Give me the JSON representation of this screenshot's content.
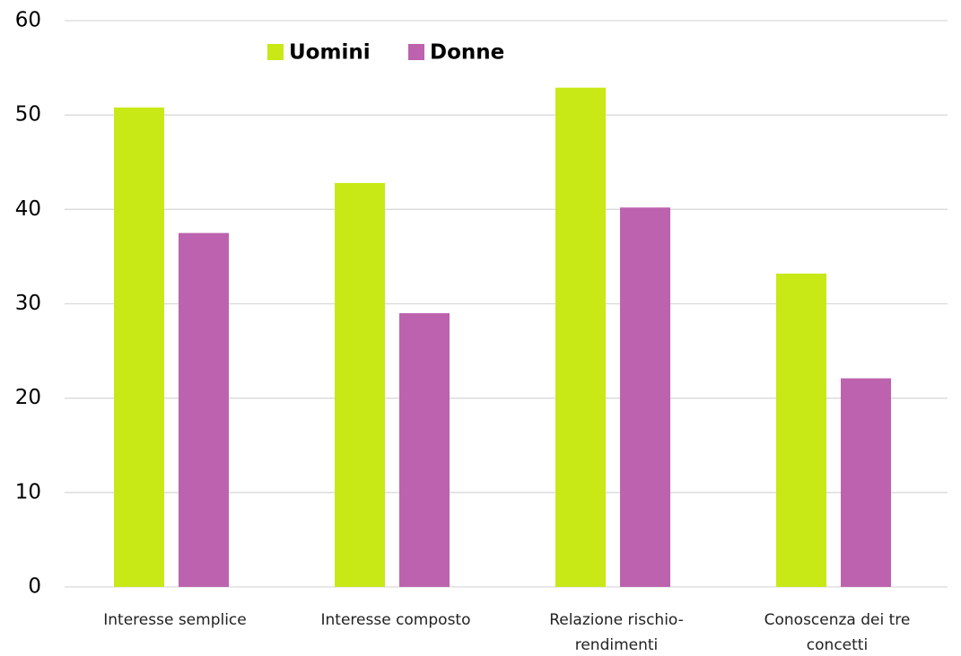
{
  "chart_data": {
    "type": "bar",
    "categories": [
      "Interesse semplice",
      "Interesse composto",
      "Relazione rischio-rendimenti",
      "Conoscenza dei tre concetti"
    ],
    "series": [
      {
        "name": "Uomini",
        "color": "#c8e916",
        "values": [
          50.8,
          42.8,
          52.9,
          33.2
        ]
      },
      {
        "name": "Donne",
        "color": "#bd62ae",
        "values": [
          37.5,
          29.0,
          40.2,
          22.1
        ]
      }
    ],
    "ylim": [
      0,
      60
    ],
    "yticks": [
      0,
      10,
      20,
      30,
      40,
      50,
      60
    ],
    "grid": true,
    "legend": "top"
  }
}
